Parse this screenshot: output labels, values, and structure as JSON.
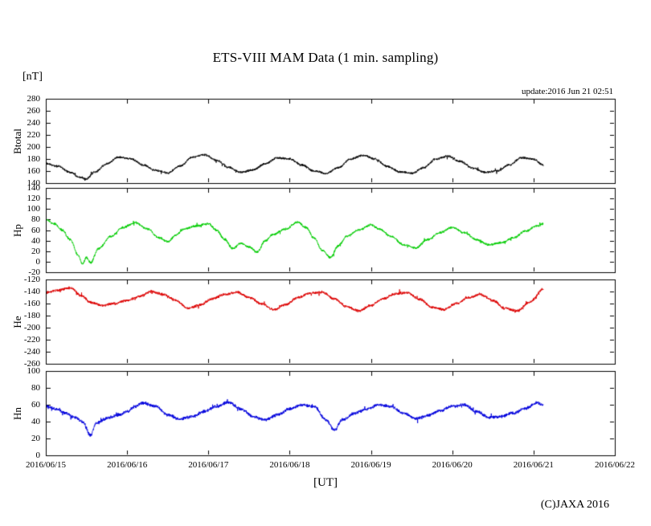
{
  "chart_data": {
    "type": "line",
    "title": "ETS-VIII MAM Data (1 min. sampling)",
    "y_unit_label": "[nT]",
    "xlabel": "[UT]",
    "update_label": "update:2016 Jun 21 02:51",
    "copyright": "(C)JAXA 2016",
    "grid": false,
    "legend": "none",
    "x_axis": {
      "range_days": [
        0,
        7
      ],
      "tick_labels": [
        "2016/06/15",
        "2016/06/16",
        "2016/06/17",
        "2016/06/18",
        "2016/06/19",
        "2016/06/20",
        "2016/06/21",
        "2016/06/22"
      ],
      "data_end_day": 6.12
    },
    "panels": [
      {
        "name": "Btotal",
        "color": "#000000",
        "ylim": [
          140,
          280
        ],
        "yticks": [
          140,
          160,
          180,
          200,
          220,
          240,
          260,
          280
        ],
        "noise_amplitude": 2.2,
        "control_points": [
          [
            0,
            172
          ],
          [
            0.15,
            168
          ],
          [
            0.3,
            158
          ],
          [
            0.42,
            150
          ],
          [
            0.5,
            147
          ],
          [
            0.6,
            158
          ],
          [
            0.75,
            172
          ],
          [
            0.9,
            183
          ],
          [
            1.05,
            180
          ],
          [
            1.2,
            170
          ],
          [
            1.35,
            161
          ],
          [
            1.5,
            157
          ],
          [
            1.65,
            168
          ],
          [
            1.8,
            183
          ],
          [
            1.95,
            187
          ],
          [
            2.1,
            178
          ],
          [
            2.25,
            166
          ],
          [
            2.4,
            158
          ],
          [
            2.55,
            162
          ],
          [
            2.7,
            172
          ],
          [
            2.85,
            182
          ],
          [
            3.0,
            180
          ],
          [
            3.15,
            170
          ],
          [
            3.3,
            160
          ],
          [
            3.45,
            156
          ],
          [
            3.6,
            166
          ],
          [
            3.75,
            180
          ],
          [
            3.9,
            186
          ],
          [
            4.05,
            180
          ],
          [
            4.2,
            168
          ],
          [
            4.35,
            159
          ],
          [
            4.5,
            156
          ],
          [
            4.65,
            166
          ],
          [
            4.8,
            180
          ],
          [
            4.95,
            185
          ],
          [
            5.1,
            176
          ],
          [
            5.25,
            165
          ],
          [
            5.4,
            158
          ],
          [
            5.55,
            160
          ],
          [
            5.7,
            170
          ],
          [
            5.85,
            182
          ],
          [
            6.0,
            180
          ],
          [
            6.12,
            170
          ]
        ]
      },
      {
        "name": "Hp",
        "color": "#00cc00",
        "ylim": [
          -20,
          140
        ],
        "yticks": [
          -20,
          0,
          20,
          40,
          60,
          80,
          100,
          120,
          140
        ],
        "noise_amplitude": 2.6,
        "control_points": [
          [
            0,
            80
          ],
          [
            0.1,
            72
          ],
          [
            0.2,
            60
          ],
          [
            0.3,
            42
          ],
          [
            0.4,
            12
          ],
          [
            0.45,
            -5
          ],
          [
            0.5,
            8
          ],
          [
            0.55,
            -2
          ],
          [
            0.65,
            25
          ],
          [
            0.8,
            48
          ],
          [
            0.95,
            65
          ],
          [
            1.1,
            74
          ],
          [
            1.25,
            62
          ],
          [
            1.4,
            45
          ],
          [
            1.5,
            38
          ],
          [
            1.6,
            50
          ],
          [
            1.7,
            62
          ],
          [
            1.85,
            68
          ],
          [
            2.0,
            72
          ],
          [
            2.1,
            60
          ],
          [
            2.2,
            42
          ],
          [
            2.3,
            25
          ],
          [
            2.4,
            35
          ],
          [
            2.5,
            28
          ],
          [
            2.6,
            18
          ],
          [
            2.7,
            40
          ],
          [
            2.8,
            52
          ],
          [
            2.95,
            62
          ],
          [
            3.1,
            75
          ],
          [
            3.2,
            65
          ],
          [
            3.3,
            45
          ],
          [
            3.4,
            22
          ],
          [
            3.5,
            8
          ],
          [
            3.6,
            30
          ],
          [
            3.7,
            48
          ],
          [
            3.85,
            60
          ],
          [
            4.0,
            70
          ],
          [
            4.1,
            62
          ],
          [
            4.25,
            48
          ],
          [
            4.4,
            32
          ],
          [
            4.55,
            26
          ],
          [
            4.7,
            42
          ],
          [
            4.85,
            55
          ],
          [
            5.0,
            65
          ],
          [
            5.15,
            55
          ],
          [
            5.3,
            42
          ],
          [
            5.45,
            32
          ],
          [
            5.6,
            36
          ],
          [
            5.75,
            45
          ],
          [
            5.9,
            58
          ],
          [
            6.05,
            68
          ],
          [
            6.12,
            72
          ]
        ]
      },
      {
        "name": "He",
        "color": "#dd0000",
        "ylim": [
          -260,
          -120
        ],
        "yticks": [
          -260,
          -240,
          -220,
          -200,
          -180,
          -160,
          -140,
          -120
        ],
        "noise_amplitude": 2.6,
        "control_points": [
          [
            0,
            -142
          ],
          [
            0.15,
            -138
          ],
          [
            0.3,
            -134
          ],
          [
            0.45,
            -148
          ],
          [
            0.55,
            -158
          ],
          [
            0.7,
            -163
          ],
          [
            0.85,
            -160
          ],
          [
            1.0,
            -155
          ],
          [
            1.15,
            -148
          ],
          [
            1.3,
            -140
          ],
          [
            1.45,
            -145
          ],
          [
            1.6,
            -155
          ],
          [
            1.75,
            -168
          ],
          [
            1.9,
            -162
          ],
          [
            2.05,
            -152
          ],
          [
            2.2,
            -145
          ],
          [
            2.35,
            -141
          ],
          [
            2.5,
            -150
          ],
          [
            2.65,
            -160
          ],
          [
            2.8,
            -170
          ],
          [
            2.95,
            -162
          ],
          [
            3.1,
            -150
          ],
          [
            3.25,
            -143
          ],
          [
            3.4,
            -141
          ],
          [
            3.55,
            -152
          ],
          [
            3.7,
            -165
          ],
          [
            3.85,
            -172
          ],
          [
            4.0,
            -163
          ],
          [
            4.15,
            -152
          ],
          [
            4.3,
            -144
          ],
          [
            4.45,
            -142
          ],
          [
            4.6,
            -153
          ],
          [
            4.75,
            -166
          ],
          [
            4.9,
            -170
          ],
          [
            5.05,
            -160
          ],
          [
            5.2,
            -150
          ],
          [
            5.35,
            -145
          ],
          [
            5.5,
            -155
          ],
          [
            5.65,
            -168
          ],
          [
            5.8,
            -172
          ],
          [
            5.95,
            -158
          ],
          [
            6.12,
            -136
          ]
        ]
      },
      {
        "name": "Hn",
        "color": "#0000dd",
        "ylim": [
          0,
          100
        ],
        "yticks": [
          0,
          20,
          40,
          60,
          80,
          100
        ],
        "noise_amplitude": 2.2,
        "control_points": [
          [
            0,
            58
          ],
          [
            0.12,
            55
          ],
          [
            0.25,
            50
          ],
          [
            0.35,
            45
          ],
          [
            0.45,
            40
          ],
          [
            0.55,
            24
          ],
          [
            0.62,
            38
          ],
          [
            0.75,
            44
          ],
          [
            0.9,
            48
          ],
          [
            1.0,
            52
          ],
          [
            1.1,
            58
          ],
          [
            1.2,
            62
          ],
          [
            1.35,
            58
          ],
          [
            1.5,
            48
          ],
          [
            1.65,
            43
          ],
          [
            1.8,
            46
          ],
          [
            1.95,
            52
          ],
          [
            2.1,
            58
          ],
          [
            2.25,
            63
          ],
          [
            2.4,
            55
          ],
          [
            2.55,
            46
          ],
          [
            2.7,
            42
          ],
          [
            2.85,
            48
          ],
          [
            3.0,
            55
          ],
          [
            3.15,
            60
          ],
          [
            3.3,
            58
          ],
          [
            3.45,
            42
          ],
          [
            3.55,
            30
          ],
          [
            3.65,
            42
          ],
          [
            3.8,
            50
          ],
          [
            3.95,
            55
          ],
          [
            4.1,
            60
          ],
          [
            4.25,
            58
          ],
          [
            4.4,
            50
          ],
          [
            4.55,
            44
          ],
          [
            4.7,
            47
          ],
          [
            4.85,
            53
          ],
          [
            5.0,
            58
          ],
          [
            5.15,
            60
          ],
          [
            5.3,
            52
          ],
          [
            5.45,
            45
          ],
          [
            5.6,
            46
          ],
          [
            5.75,
            50
          ],
          [
            5.9,
            56
          ],
          [
            6.05,
            62
          ],
          [
            6.12,
            60
          ]
        ]
      }
    ]
  }
}
